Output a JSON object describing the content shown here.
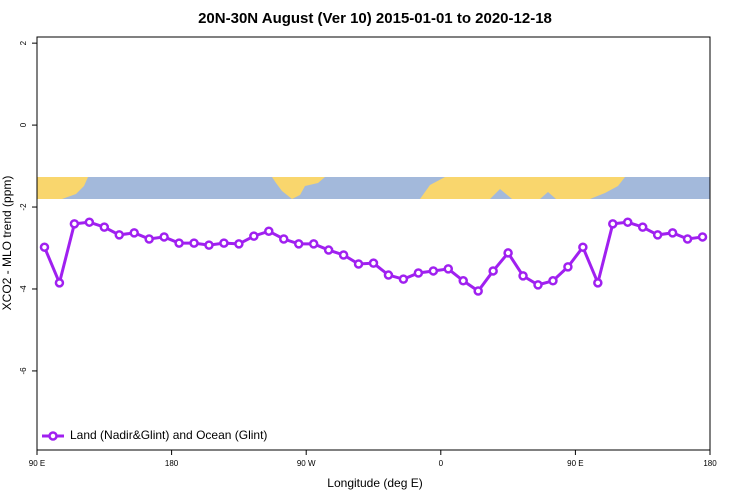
{
  "chart_data": {
    "type": "line",
    "title": "20N-30N August (Ver 10)   2015-01-01 to 2020-12-18",
    "x_label": "Longitude (deg E)",
    "y_label": "XCO2 - MLO trend (ppm)",
    "xlim": [
      90,
      540
    ],
    "ylim": [
      -7.93,
      2.15
    ],
    "xticks": [
      {
        "value": 90,
        "label": "90 E"
      },
      180,
      {
        "value": 270,
        "label": "90 W"
      },
      {
        "value": 360,
        "label": "0"
      },
      {
        "value": 450,
        "label": "90 E"
      },
      {
        "value": 540,
        "label": "180"
      }
    ],
    "yticks": [
      2,
      0,
      -2,
      -4,
      -6
    ],
    "legend": "bottom-left",
    "x": [
      95,
      105,
      115,
      125,
      135,
      145,
      155,
      165,
      175,
      185,
      195,
      205,
      215,
      225,
      235,
      245,
      255,
      265,
      275,
      285,
      295,
      305,
      315,
      325,
      335,
      345,
      355,
      365,
      375,
      385,
      395,
      405,
      415,
      425,
      435,
      445,
      455,
      465,
      475,
      485,
      495,
      505,
      515,
      525,
      535
    ],
    "series": [
      {
        "name": "Land (Nadir&Glint) and Ocean (Glint)",
        "color": "#a020f0",
        "values": [
          -2.98,
          -3.85,
          -2.41,
          -2.37,
          -2.49,
          -2.68,
          -2.63,
          -2.78,
          -2.73,
          -2.88,
          -2.88,
          -2.93,
          -2.88,
          -2.9,
          -2.71,
          -2.59,
          -2.78,
          -2.9,
          -2.9,
          -3.05,
          -3.17,
          -3.39,
          -3.37,
          -3.66,
          -3.76,
          -3.61,
          -3.56,
          -3.51,
          -3.8,
          -4.05,
          -3.56,
          -3.12,
          -3.68,
          -3.9,
          -3.8,
          -3.46,
          -2.98,
          -3.85,
          -2.41,
          -2.37,
          -2.49,
          -2.68,
          -2.63,
          -2.78,
          -2.73
        ]
      }
    ]
  }
}
